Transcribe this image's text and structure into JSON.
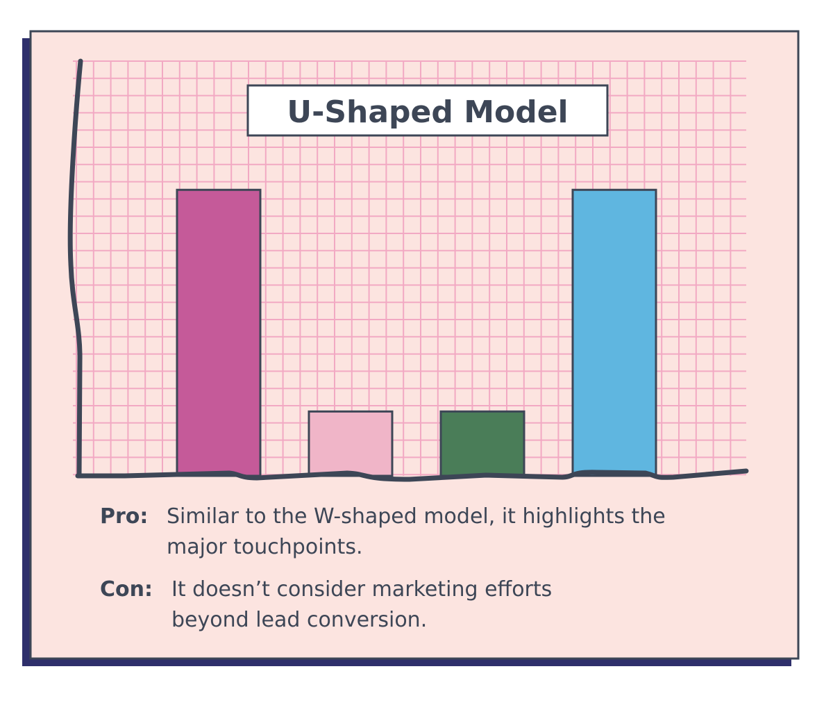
{
  "chart_data": {
    "type": "bar",
    "title": "U-Shaped Model",
    "categories": [
      null,
      null,
      null,
      null
    ],
    "values": [
      40,
      9,
      9,
      40
    ],
    "colors": [
      "#c55a99",
      "#f0b5c8",
      "#4a7d58",
      "#5fb6e0"
    ],
    "ylim": [
      0,
      58
    ],
    "grid": true
  },
  "notes": {
    "pro": {
      "label": "Pro:",
      "lines": [
        "Similar to the W-shaped model, it highlights the",
        "major touchpoints."
      ]
    },
    "con": {
      "label": "Con:",
      "lines": [
        "It doesn’t consider marketing efforts",
        "beyond lead conversion."
      ]
    }
  }
}
